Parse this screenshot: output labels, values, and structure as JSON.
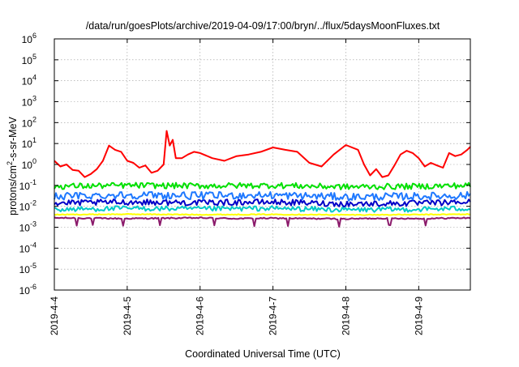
{
  "chart_data": {
    "type": "line",
    "title": "/data/run/goesPlots/archive/2019-04-09/17:00/bryn/../flux/5daysMoonFluxes.txt",
    "xlabel": "Coordinated Universal Time (UTC)",
    "ylabel": "protons/cm²-s-sr-MeV",
    "ylabel_parts": {
      "pre": "protons/cm",
      "sup": "2",
      "post": "-s-sr-MeV"
    },
    "y_scale": "log",
    "ylim": [
      1e-06,
      1000000.0
    ],
    "y_ticks": [
      {
        "exp": -6,
        "label": "10",
        "sup": "-6"
      },
      {
        "exp": -5,
        "label": "10",
        "sup": "-5"
      },
      {
        "exp": -4,
        "label": "10",
        "sup": "-4"
      },
      {
        "exp": -3,
        "label": "10",
        "sup": "-3"
      },
      {
        "exp": -2,
        "label": "10",
        "sup": "-2"
      },
      {
        "exp": -1,
        "label": "10",
        "sup": "-1"
      },
      {
        "exp": 0,
        "label": "10",
        "sup": "0"
      },
      {
        "exp": 1,
        "label": "10",
        "sup": "1"
      },
      {
        "exp": 2,
        "label": "10",
        "sup": "2"
      },
      {
        "exp": 3,
        "label": "10",
        "sup": "3"
      },
      {
        "exp": 4,
        "label": "10",
        "sup": "4"
      },
      {
        "exp": 5,
        "label": "10",
        "sup": "5"
      },
      {
        "exp": 6,
        "label": "10",
        "sup": "6"
      }
    ],
    "xlim": [
      "2019-04-04 00:00",
      "2019-04-09 17:00"
    ],
    "x_ticks": [
      {
        "date": "2019-04-04",
        "label": "2019-4-4"
      },
      {
        "date": "2019-04-05",
        "label": "2019-4-5"
      },
      {
        "date": "2019-04-06",
        "label": "2019-4-6"
      },
      {
        "date": "2019-04-07",
        "label": "2019-4-7"
      },
      {
        "date": "2019-04-08",
        "label": "2019-4-8"
      },
      {
        "date": "2019-04-09",
        "label": "2019-4-9"
      }
    ],
    "grid": true,
    "series": [
      {
        "color": "#8b1a6b",
        "baseline": 0.0025,
        "dips": [
          0.3,
          0.52,
          0.95,
          1.45,
          2.2,
          2.75,
          3.2,
          3.9,
          4.6,
          5.1
        ],
        "points": [
          [
            "2019-04-04 00:00",
            0.0028
          ],
          [
            "2019-04-04 12:00",
            0.0027
          ],
          [
            "2019-04-05 00:00",
            0.0026
          ],
          [
            "2019-04-05 12:00",
            0.0027
          ],
          [
            "2019-04-06 00:00",
            0.0028
          ],
          [
            "2019-04-06 12:00",
            0.0026
          ],
          [
            "2019-04-07 00:00",
            0.0027
          ],
          [
            "2019-04-07 12:00",
            0.0026
          ],
          [
            "2019-04-08 00:00",
            0.0025
          ],
          [
            "2019-04-08 12:00",
            0.0027
          ],
          [
            "2019-04-09 00:00",
            0.0026
          ],
          [
            "2019-04-09 17:00",
            0.0028
          ]
        ]
      },
      {
        "color": "#ffff00",
        "points": [
          [
            "2019-04-04 00:00",
            0.004
          ],
          [
            "2019-04-05 00:00",
            0.0042
          ],
          [
            "2019-04-06 00:00",
            0.004
          ],
          [
            "2019-04-07 00:00",
            0.0041
          ],
          [
            "2019-04-08 00:00",
            0.0039
          ],
          [
            "2019-04-09 00:00",
            0.004
          ],
          [
            "2019-04-09 17:00",
            0.0042
          ]
        ]
      },
      {
        "color": "#00c8c8",
        "points": [
          [
            "2019-04-04 00:00",
            0.007
          ],
          [
            "2019-04-05 00:00",
            0.008
          ],
          [
            "2019-04-06 00:00",
            0.0075
          ],
          [
            "2019-04-07 00:00",
            0.008
          ],
          [
            "2019-04-08 00:00",
            0.0068
          ],
          [
            "2019-04-09 00:00",
            0.0072
          ],
          [
            "2019-04-09 17:00",
            0.008
          ]
        ]
      },
      {
        "color": "#0000c8",
        "points": [
          [
            "2019-04-04 00:00",
            0.014
          ],
          [
            "2019-04-05 00:00",
            0.016
          ],
          [
            "2019-04-06 00:00",
            0.015
          ],
          [
            "2019-04-07 00:00",
            0.016
          ],
          [
            "2019-04-08 00:00",
            0.013
          ],
          [
            "2019-04-09 00:00",
            0.014
          ],
          [
            "2019-04-09 17:00",
            0.016
          ]
        ]
      },
      {
        "color": "#1e78ff",
        "points": [
          [
            "2019-04-04 00:00",
            0.03
          ],
          [
            "2019-04-05 00:00",
            0.035
          ],
          [
            "2019-04-06 00:00",
            0.032
          ],
          [
            "2019-04-07 00:00",
            0.034
          ],
          [
            "2019-04-08 00:00",
            0.028
          ],
          [
            "2019-04-09 00:00",
            0.03
          ],
          [
            "2019-04-09 17:00",
            0.033
          ]
        ]
      },
      {
        "color": "#00e000",
        "points": [
          [
            "2019-04-04 00:00",
            0.09
          ],
          [
            "2019-04-05 00:00",
            0.1
          ],
          [
            "2019-04-06 00:00",
            0.095
          ],
          [
            "2019-04-07 00:00",
            0.1
          ],
          [
            "2019-04-08 00:00",
            0.085
          ],
          [
            "2019-04-09 00:00",
            0.09
          ],
          [
            "2019-04-09 17:00",
            0.1
          ]
        ]
      },
      {
        "color": "#ff0000",
        "points": [
          [
            "2019-04-04 00:00",
            1.5
          ],
          [
            "2019-04-04 02:00",
            0.8
          ],
          [
            "2019-04-04 04:00",
            1.0
          ],
          [
            "2019-04-04 06:00",
            0.55
          ],
          [
            "2019-04-04 08:00",
            0.5
          ],
          [
            "2019-04-04 10:00",
            0.25
          ],
          [
            "2019-04-04 12:00",
            0.35
          ],
          [
            "2019-04-04 14:00",
            0.6
          ],
          [
            "2019-04-04 16:00",
            1.5
          ],
          [
            "2019-04-04 18:00",
            8
          ],
          [
            "2019-04-04 20:00",
            5
          ],
          [
            "2019-04-04 22:00",
            4
          ],
          [
            "2019-04-05 00:00",
            1.5
          ],
          [
            "2019-04-05 02:00",
            1.2
          ],
          [
            "2019-04-05 04:00",
            0.7
          ],
          [
            "2019-04-05 06:00",
            0.9
          ],
          [
            "2019-04-05 08:00",
            0.4
          ],
          [
            "2019-04-05 10:00",
            0.5
          ],
          [
            "2019-04-05 12:00",
            1.0
          ],
          [
            "2019-04-05 13:00",
            40
          ],
          [
            "2019-04-05 14:00",
            8
          ],
          [
            "2019-04-05 15:00",
            15
          ],
          [
            "2019-04-05 16:00",
            2
          ],
          [
            "2019-04-05 18:00",
            2
          ],
          [
            "2019-04-05 20:00",
            3
          ],
          [
            "2019-04-05 22:00",
            4
          ],
          [
            "2019-04-06 00:00",
            3.5
          ],
          [
            "2019-04-06 04:00",
            2.0
          ],
          [
            "2019-04-06 08:00",
            1.5
          ],
          [
            "2019-04-06 12:00",
            2.5
          ],
          [
            "2019-04-06 16:00",
            3.0
          ],
          [
            "2019-04-06 20:00",
            4
          ],
          [
            "2019-04-07 00:00",
            6.5
          ],
          [
            "2019-04-07 04:00",
            5.0
          ],
          [
            "2019-04-07 08:00",
            4.0
          ],
          [
            "2019-04-07 12:00",
            1.2
          ],
          [
            "2019-04-07 16:00",
            0.8
          ],
          [
            "2019-04-07 20:00",
            3.0
          ],
          [
            "2019-04-08 00:00",
            8.5
          ],
          [
            "2019-04-08 04:00",
            5.0
          ],
          [
            "2019-04-08 06:00",
            1.0
          ],
          [
            "2019-04-08 08:00",
            0.3
          ],
          [
            "2019-04-08 10:00",
            0.6
          ],
          [
            "2019-04-08 12:00",
            0.25
          ],
          [
            "2019-04-08 14:00",
            0.3
          ],
          [
            "2019-04-08 16:00",
            0.9
          ],
          [
            "2019-04-08 18:00",
            3
          ],
          [
            "2019-04-08 20:00",
            4.5
          ],
          [
            "2019-04-08 22:00",
            3.5
          ],
          [
            "2019-04-09 00:00",
            2.0
          ],
          [
            "2019-04-09 02:00",
            0.8
          ],
          [
            "2019-04-09 04:00",
            1.2
          ],
          [
            "2019-04-09 06:00",
            0.9
          ],
          [
            "2019-04-09 08:00",
            0.7
          ],
          [
            "2019-04-09 10:00",
            3.5
          ],
          [
            "2019-04-09 12:00",
            2.5
          ],
          [
            "2019-04-09 14:00",
            3.0
          ],
          [
            "2019-04-09 16:00",
            5.0
          ],
          [
            "2019-04-09 17:00",
            7.0
          ]
        ]
      }
    ]
  }
}
